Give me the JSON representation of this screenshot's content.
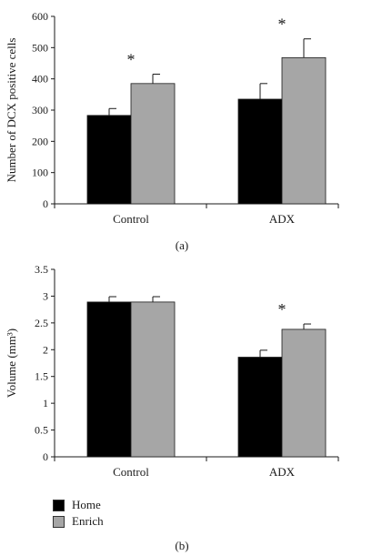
{
  "chart_data": [
    {
      "type": "bar",
      "panel_label": "(a)",
      "categories": [
        "Control",
        "ADX"
      ],
      "ylabel": "Number of DCX positive cells",
      "xlabel": "",
      "ylim": [
        0,
        600
      ],
      "yticks": [
        "0",
        "100",
        "200",
        "300",
        "400",
        "500",
        "600"
      ],
      "series": [
        {
          "name": "Home",
          "color": "#000000",
          "values": [
            283,
            335
          ],
          "errors": [
            22,
            50
          ]
        },
        {
          "name": "Enrich",
          "color": "#a6a6a6",
          "values": [
            385,
            468
          ],
          "errors": [
            30,
            60
          ]
        }
      ],
      "annotations": [
        "*",
        "*"
      ],
      "grid": false
    },
    {
      "type": "bar",
      "panel_label": "(b)",
      "categories": [
        "Control",
        "ADX"
      ],
      "ylabel": "Volume (mm³)",
      "xlabel": "",
      "ylim": [
        0,
        3.5
      ],
      "yticks": [
        "0",
        "0.5",
        "1",
        "1.5",
        "2",
        "2.5",
        "3",
        "3.5"
      ],
      "series": [
        {
          "name": "Home",
          "color": "#000000",
          "values": [
            2.89,
            1.86
          ],
          "errors": [
            0.1,
            0.13
          ]
        },
        {
          "name": "Enrich",
          "color": "#a6a6a6",
          "values": [
            2.89,
            2.38
          ],
          "errors": [
            0.1,
            0.1
          ]
        }
      ],
      "annotations": [
        "",
        "*"
      ],
      "grid": false
    }
  ],
  "legend": [
    {
      "label": "Home",
      "color": "#000000"
    },
    {
      "label": "Enrich",
      "color": "#a6a6a6"
    }
  ]
}
